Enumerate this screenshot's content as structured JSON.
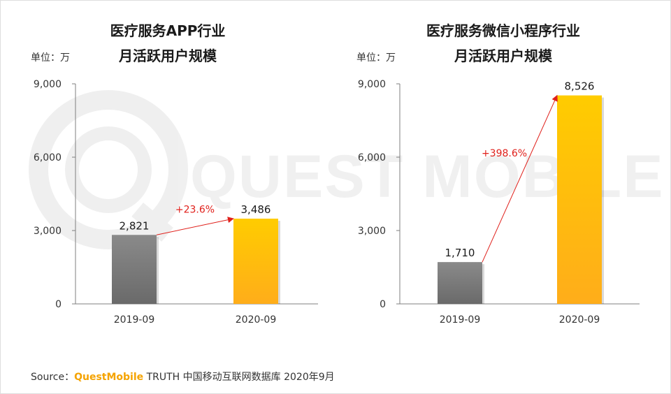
{
  "watermark": {
    "text": "QUEST MOBILE"
  },
  "colors": {
    "bar_2019": "#7a7a7a",
    "bar_2020": "#ffc000",
    "arrow": "#e0201b",
    "growth_text": "#e0201b",
    "brand": "#f5a300"
  },
  "chart_data": [
    {
      "type": "bar",
      "title_line1": "医疗服务APP行业",
      "title_line2": "月活跃用户规模",
      "unit_label": "单位：万",
      "categories": [
        "2019-09",
        "2020-09"
      ],
      "values": [
        2821,
        3486
      ],
      "value_labels": [
        "2,821",
        "3,486"
      ],
      "growth_label": "+23.6%",
      "ylim": [
        0,
        9000
      ],
      "yticks": [
        0,
        3000,
        6000,
        9000
      ],
      "ytick_labels": [
        "0",
        "3,000",
        "6,000",
        "9,000"
      ]
    },
    {
      "type": "bar",
      "title_line1": "医疗服务微信小程序行业",
      "title_line2": "月活跃用户规模",
      "unit_label": "单位：万",
      "categories": [
        "2019-09",
        "2020-09"
      ],
      "values": [
        1710,
        8526
      ],
      "value_labels": [
        "1,710",
        "8,526"
      ],
      "growth_label": "+398.6%",
      "ylim": [
        0,
        9000
      ],
      "yticks": [
        0,
        3000,
        6000,
        9000
      ],
      "ytick_labels": [
        "0",
        "3,000",
        "6,000",
        "9,000"
      ]
    }
  ],
  "source": {
    "prefix": "Source：",
    "brand": "QuestMobile",
    "suffix": " TRUTH 中国移动互联网数据库 2020年9月"
  }
}
